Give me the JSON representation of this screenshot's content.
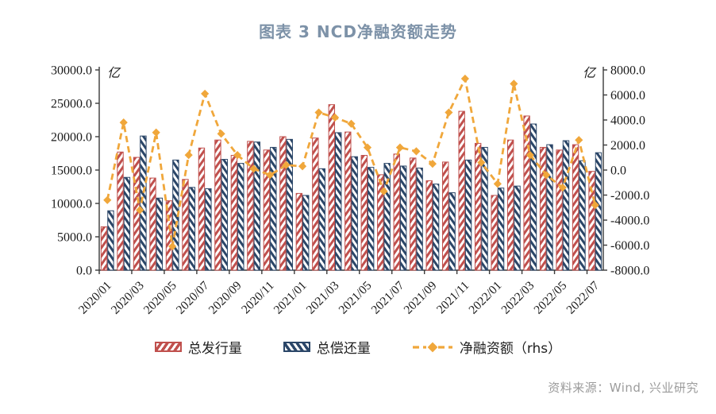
{
  "title": "图表 3 NCD净融资额走势",
  "source": "资料来源：Wind, 兴业研究",
  "colors": {
    "title": "#7d92a8",
    "issuance_red": "#c0504d",
    "repayment_navy": "#2b4668",
    "net_orange": "#f0a73b",
    "axis": "#3a3a3a",
    "tick_text": "#1a1a1a",
    "source_gray": "#9b9b9b"
  },
  "legend": {
    "issuance_label": "总发行量",
    "repayment_label": "总偿还量",
    "net_label": "净融资额（rhs）"
  },
  "chart_data": {
    "type": "bar",
    "subtype": "dual-axis bar + dashed line with diamond markers",
    "title": "图表 3 NCD净融资额走势",
    "grid": false,
    "legend_position": "bottom",
    "categories": [
      "2020/01",
      "2020/02",
      "2020/03",
      "2020/04",
      "2020/05",
      "2020/06",
      "2020/07",
      "2020/08",
      "2020/09",
      "2020/10",
      "2020/11",
      "2020/12",
      "2021/01",
      "2021/02",
      "2021/03",
      "2021/04",
      "2021/05",
      "2021/06",
      "2021/07",
      "2021/08",
      "2021/09",
      "2021/10",
      "2021/11",
      "2021/12",
      "2022/01",
      "2022/02",
      "2022/03",
      "2022/04",
      "2022/05",
      "2022/06",
      "2022/07"
    ],
    "x_tick_labels": [
      "2020/01",
      "2020/03",
      "2020/05",
      "2020/07",
      "2020/09",
      "2020/11",
      "2021/01",
      "2021/03",
      "2021/05",
      "2021/07",
      "2021/09",
      "2021/11",
      "2022/01",
      "2022/03",
      "2022/05",
      "2022/07"
    ],
    "series": [
      {
        "name": "总发行量",
        "type": "bar",
        "axis": "left",
        "color": "#c0504d",
        "values": [
          6500,
          17700,
          16900,
          13800,
          10400,
          13600,
          18300,
          19500,
          17200,
          19300,
          18000,
          20000,
          11500,
          19800,
          24800,
          20700,
          17200,
          14300,
          17400,
          16800,
          13400,
          16200,
          23800,
          19000,
          11200,
          19500,
          23100,
          18400,
          18000,
          18800,
          14800
        ]
      },
      {
        "name": "总偿还量",
        "type": "bar",
        "axis": "left",
        "color": "#2b4668",
        "values": [
          8900,
          13900,
          20100,
          10800,
          16500,
          12400,
          12200,
          16600,
          16000,
          19200,
          18400,
          19600,
          11200,
          15200,
          20600,
          17000,
          15400,
          16000,
          15600,
          15300,
          12900,
          11600,
          16500,
          18400,
          12300,
          12600,
          21900,
          18800,
          19400,
          16400,
          17600
        ]
      },
      {
        "name": "净融资额（rhs）",
        "type": "line",
        "axis": "right",
        "color": "#f0a73b",
        "values": [
          -2400,
          3800,
          -3200,
          3000,
          -6100,
          1200,
          6100,
          2900,
          1200,
          100,
          -400,
          400,
          300,
          4600,
          4200,
          3700,
          1800,
          -1700,
          1800,
          1500,
          500,
          4600,
          7300,
          600,
          -1100,
          6900,
          1200,
          -400,
          -1400,
          2400,
          -2800
        ]
      }
    ],
    "left_axis": {
      "unit": "亿",
      "min": 0,
      "max": 30000,
      "step": 5000,
      "tick_labels": [
        "30000.0",
        "25000.0",
        "20000.0",
        "15000.0",
        "10000.0",
        "5000.0",
        "0.0"
      ]
    },
    "right_axis": {
      "unit": "亿",
      "min": -8000,
      "max": 8000,
      "step": 2000,
      "tick_labels": [
        "8000.0",
        "6000.0",
        "4000.0",
        "2000.0",
        "0.0",
        "-2000.0",
        "-4000.0",
        "-6000.0",
        "-8000.0"
      ]
    }
  }
}
